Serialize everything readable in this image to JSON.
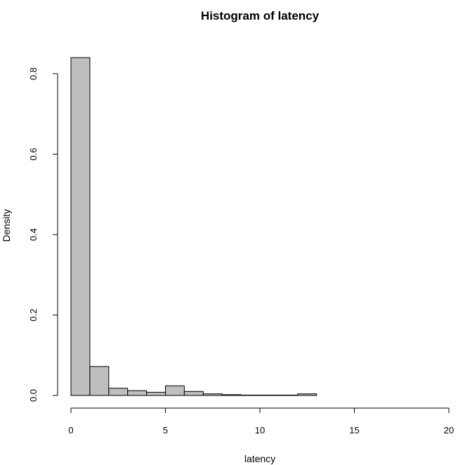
{
  "chart_data": {
    "type": "bar",
    "title": "Histogram of latency",
    "xlabel": "latency",
    "ylabel": "Density",
    "xlim": [
      0,
      20
    ],
    "ylim": [
      0,
      0.84
    ],
    "x_ticks": [
      "0",
      "5",
      "10",
      "15",
      "20"
    ],
    "y_ticks": [
      "0.0",
      "0.2",
      "0.4",
      "0.6",
      "0.8"
    ],
    "bin_width": 1,
    "bins": [
      {
        "x0": 0,
        "x1": 1,
        "value": 0.84
      },
      {
        "x0": 1,
        "x1": 2,
        "value": 0.072
      },
      {
        "x0": 2,
        "x1": 3,
        "value": 0.018
      },
      {
        "x0": 3,
        "x1": 4,
        "value": 0.012
      },
      {
        "x0": 4,
        "x1": 5,
        "value": 0.008
      },
      {
        "x0": 5,
        "x1": 6,
        "value": 0.024
      },
      {
        "x0": 6,
        "x1": 7,
        "value": 0.01
      },
      {
        "x0": 7,
        "x1": 8,
        "value": 0.004
      },
      {
        "x0": 8,
        "x1": 9,
        "value": 0.002
      },
      {
        "x0": 9,
        "x1": 10,
        "value": 0.001
      },
      {
        "x0": 10,
        "x1": 11,
        "value": 0.001
      },
      {
        "x0": 11,
        "x1": 12,
        "value": 0.001
      },
      {
        "x0": 12,
        "x1": 13,
        "value": 0.004
      },
      {
        "x0": 13,
        "x1": 14,
        "value": 0
      },
      {
        "x0": 14,
        "x1": 15,
        "value": 0
      },
      {
        "x0": 15,
        "x1": 16,
        "value": 0
      },
      {
        "x0": 16,
        "x1": 17,
        "value": 0
      },
      {
        "x0": 17,
        "x1": 18,
        "value": 0
      },
      {
        "x0": 18,
        "x1": 19,
        "value": 0
      },
      {
        "x0": 19,
        "x1": 20,
        "value": 0
      }
    ],
    "bar_color": "#bebebe",
    "grid": false
  }
}
